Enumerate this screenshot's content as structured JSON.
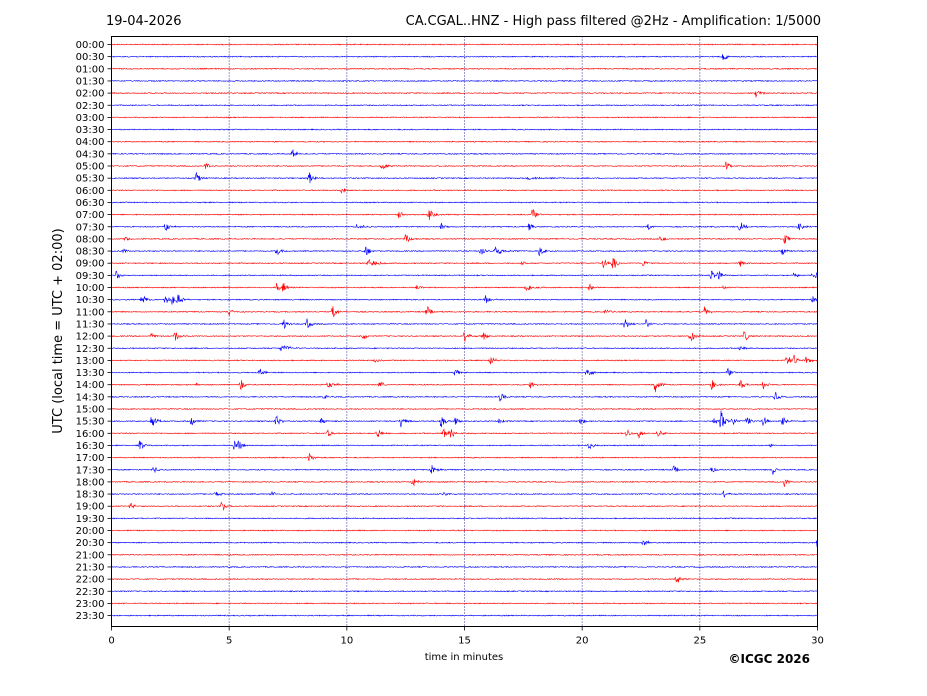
{
  "header": {
    "date": "19-04-2026",
    "title": "CA.CGAL..HNZ - High pass filtered @2Hz - Amplification: 1/5000"
  },
  "footer": {
    "copyright": "©ICGC 2026"
  },
  "colors": {
    "even_row": "#ff0000",
    "odd_row": "#0000ff",
    "grid": "#000080",
    "axis": "#000000"
  },
  "chart_data": {
    "type": "line",
    "title": "CA.CGAL..HNZ - High pass filtered @2Hz - Amplification: 1/5000",
    "xlabel": "time in minutes",
    "ylabel": "UTC (local time = UTC + 02:00)",
    "xlim": [
      0,
      30
    ],
    "xticks": [
      0,
      5,
      10,
      15,
      20,
      25,
      30
    ],
    "grid_x": [
      5,
      10,
      15,
      20,
      25
    ],
    "rows": [
      "00:00",
      "00:30",
      "01:00",
      "01:30",
      "02:00",
      "02:30",
      "03:00",
      "03:30",
      "04:00",
      "04:30",
      "05:00",
      "05:30",
      "06:00",
      "06:30",
      "07:00",
      "07:30",
      "08:00",
      "08:30",
      "09:00",
      "09:30",
      "10:00",
      "10:30",
      "11:00",
      "11:30",
      "12:00",
      "12:30",
      "13:00",
      "13:30",
      "14:00",
      "14:30",
      "15:00",
      "15:30",
      "16:00",
      "16:30",
      "17:00",
      "17:30",
      "18:00",
      "18:30",
      "19:00",
      "19:30",
      "20:00",
      "20:30",
      "21:00",
      "21:30",
      "22:00",
      "22:30",
      "23:00",
      "23:30"
    ],
    "events": [
      {
        "row": "00:30",
        "minute": 26.0,
        "amp": 0.45
      },
      {
        "row": "02:00",
        "minute": 27.4,
        "amp": 0.5
      },
      {
        "row": "04:30",
        "minute": 7.7,
        "amp": 0.55
      },
      {
        "row": "05:00",
        "minute": 4.0,
        "amp": 0.4
      },
      {
        "row": "05:00",
        "minute": 11.5,
        "amp": 0.45
      },
      {
        "row": "05:00",
        "minute": 26.1,
        "amp": 0.45
      },
      {
        "row": "05:30",
        "minute": 3.6,
        "amp": 0.6
      },
      {
        "row": "05:30",
        "minute": 8.4,
        "amp": 0.65
      },
      {
        "row": "05:30",
        "minute": 17.7,
        "amp": 0.15,
        "dur": 0.8
      },
      {
        "row": "06:00",
        "minute": 9.8,
        "amp": 0.5
      },
      {
        "row": "07:00",
        "minute": 12.2,
        "amp": 0.4
      },
      {
        "row": "07:00",
        "minute": 13.5,
        "amp": 0.6
      },
      {
        "row": "07:00",
        "minute": 17.9,
        "amp": 0.65
      },
      {
        "row": "07:30",
        "minute": 2.3,
        "amp": 0.45
      },
      {
        "row": "07:30",
        "minute": 10.4,
        "amp": 0.2,
        "dur": 0.7
      },
      {
        "row": "07:30",
        "minute": 14.0,
        "amp": 0.45
      },
      {
        "row": "07:30",
        "minute": 17.7,
        "amp": 0.45
      },
      {
        "row": "07:30",
        "minute": 22.8,
        "amp": 0.3
      },
      {
        "row": "07:30",
        "minute": 26.7,
        "amp": 0.55
      },
      {
        "row": "07:30",
        "minute": 29.2,
        "amp": 0.55
      },
      {
        "row": "08:00",
        "minute": 0.6,
        "amp": 0.3
      },
      {
        "row": "08:00",
        "minute": 12.5,
        "amp": 0.5
      },
      {
        "row": "08:00",
        "minute": 23.3,
        "amp": 0.45
      },
      {
        "row": "08:00",
        "minute": 28.6,
        "amp": 0.6
      },
      {
        "row": "08:30",
        "minute": 0.5,
        "amp": 0.3
      },
      {
        "row": "08:30",
        "minute": 7.0,
        "amp": 0.6
      },
      {
        "row": "08:30",
        "minute": 10.8,
        "amp": 0.6
      },
      {
        "row": "08:30",
        "minute": 15.7,
        "amp": 0.6
      },
      {
        "row": "08:30",
        "minute": 16.3,
        "amp": 0.45,
        "dur": 0.6
      },
      {
        "row": "08:30",
        "minute": 18.2,
        "amp": 0.55
      },
      {
        "row": "08:30",
        "minute": 28.5,
        "amp": 0.5
      },
      {
        "row": "09:00",
        "minute": 10.9,
        "amp": 0.45,
        "dur": 0.5
      },
      {
        "row": "09:00",
        "minute": 17.4,
        "amp": 0.25
      },
      {
        "row": "09:00",
        "minute": 20.9,
        "amp": 0.45
      },
      {
        "row": "09:00",
        "minute": 21.3,
        "amp": 0.7
      },
      {
        "row": "09:00",
        "minute": 22.6,
        "amp": 0.35
      },
      {
        "row": "09:00",
        "minute": 26.7,
        "amp": 0.35
      },
      {
        "row": "09:30",
        "minute": 0.2,
        "amp": 0.45
      },
      {
        "row": "09:30",
        "minute": 25.5,
        "amp": 0.5
      },
      {
        "row": "09:30",
        "minute": 25.8,
        "amp": 0.5
      },
      {
        "row": "09:30",
        "minute": 29.0,
        "amp": 0.45
      },
      {
        "row": "09:30",
        "minute": 29.8,
        "amp": 0.55
      },
      {
        "row": "10:00",
        "minute": 7.0,
        "amp": 0.5
      },
      {
        "row": "10:00",
        "minute": 7.3,
        "amp": 0.5
      },
      {
        "row": "10:00",
        "minute": 13.0,
        "amp": 0.2
      },
      {
        "row": "10:00",
        "minute": 17.6,
        "amp": 0.35,
        "dur": 0.6
      },
      {
        "row": "10:00",
        "minute": 20.3,
        "amp": 0.35
      },
      {
        "row": "10:00",
        "minute": 26.0,
        "amp": 0.2
      },
      {
        "row": "10:30",
        "minute": 1.3,
        "amp": 0.75
      },
      {
        "row": "10:30",
        "minute": 2.3,
        "amp": 0.6
      },
      {
        "row": "10:30",
        "minute": 2.6,
        "amp": 0.55
      },
      {
        "row": "10:30",
        "minute": 2.8,
        "amp": 0.8
      },
      {
        "row": "10:30",
        "minute": 15.9,
        "amp": 0.5
      },
      {
        "row": "10:30",
        "minute": 29.8,
        "amp": 0.45
      },
      {
        "row": "11:00",
        "minute": 5.0,
        "amp": 0.35
      },
      {
        "row": "11:00",
        "minute": 9.4,
        "amp": 0.65
      },
      {
        "row": "11:00",
        "minute": 13.4,
        "amp": 0.6
      },
      {
        "row": "11:00",
        "minute": 21.0,
        "amp": 0.3
      },
      {
        "row": "11:00",
        "minute": 25.2,
        "amp": 0.45
      },
      {
        "row": "11:30",
        "minute": 7.3,
        "amp": 0.55
      },
      {
        "row": "11:30",
        "minute": 8.3,
        "amp": 0.55
      },
      {
        "row": "11:30",
        "minute": 21.8,
        "amp": 0.6
      },
      {
        "row": "11:30",
        "minute": 22.7,
        "amp": 0.5
      },
      {
        "row": "12:00",
        "minute": 1.7,
        "amp": 0.25
      },
      {
        "row": "12:00",
        "minute": 2.7,
        "amp": 0.6
      },
      {
        "row": "12:00",
        "minute": 10.7,
        "amp": 0.35
      },
      {
        "row": "12:00",
        "minute": 15.0,
        "amp": 0.6
      },
      {
        "row": "12:00",
        "minute": 15.8,
        "amp": 0.4
      },
      {
        "row": "12:00",
        "minute": 24.6,
        "amp": 0.7
      },
      {
        "row": "12:00",
        "minute": 26.9,
        "amp": 0.55
      },
      {
        "row": "12:30",
        "minute": 7.2,
        "amp": 0.35,
        "dur": 0.6
      },
      {
        "row": "12:30",
        "minute": 26.7,
        "amp": 0.35
      },
      {
        "row": "13:00",
        "minute": 11.2,
        "amp": 0.2
      },
      {
        "row": "13:00",
        "minute": 16.1,
        "amp": 0.55
      },
      {
        "row": "13:00",
        "minute": 28.7,
        "amp": 0.55
      },
      {
        "row": "13:00",
        "minute": 29.0,
        "amp": 0.5
      },
      {
        "row": "13:00",
        "minute": 29.5,
        "amp": 0.45
      },
      {
        "row": "13:30",
        "minute": 6.3,
        "amp": 0.5
      },
      {
        "row": "13:30",
        "minute": 14.6,
        "amp": 0.45
      },
      {
        "row": "13:30",
        "minute": 20.2,
        "amp": 0.6
      },
      {
        "row": "13:30",
        "minute": 26.2,
        "amp": 0.5
      },
      {
        "row": "14:00",
        "minute": 3.6,
        "amp": 0.15
      },
      {
        "row": "14:00",
        "minute": 5.5,
        "amp": 0.55
      },
      {
        "row": "14:00",
        "minute": 9.2,
        "amp": 0.3,
        "dur": 0.5
      },
      {
        "row": "14:00",
        "minute": 11.4,
        "amp": 0.4
      },
      {
        "row": "14:00",
        "minute": 17.8,
        "amp": 0.35
      },
      {
        "row": "14:00",
        "minute": 23.1,
        "amp": 0.75
      },
      {
        "row": "14:00",
        "minute": 25.5,
        "amp": 0.5
      },
      {
        "row": "14:00",
        "minute": 26.7,
        "amp": 0.6
      },
      {
        "row": "14:00",
        "minute": 27.7,
        "amp": 0.45
      },
      {
        "row": "14:30",
        "minute": 9.0,
        "amp": 0.35
      },
      {
        "row": "14:30",
        "minute": 16.5,
        "amp": 0.5
      },
      {
        "row": "14:30",
        "minute": 28.2,
        "amp": 0.45
      },
      {
        "row": "15:30",
        "minute": 1.7,
        "amp": 0.75
      },
      {
        "row": "15:30",
        "minute": 3.4,
        "amp": 0.45
      },
      {
        "row": "15:30",
        "minute": 7.0,
        "amp": 0.65
      },
      {
        "row": "15:30",
        "minute": 8.9,
        "amp": 0.4
      },
      {
        "row": "15:30",
        "minute": 12.3,
        "amp": 0.6
      },
      {
        "row": "15:30",
        "minute": 14.0,
        "amp": 0.7
      },
      {
        "row": "15:30",
        "minute": 14.6,
        "amp": 0.4
      },
      {
        "row": "15:30",
        "minute": 16.5,
        "amp": 0.35
      },
      {
        "row": "15:30",
        "minute": 19.9,
        "amp": 0.45
      },
      {
        "row": "15:30",
        "minute": 25.6,
        "amp": 0.35
      },
      {
        "row": "15:30",
        "minute": 25.9,
        "amp": 1.0
      },
      {
        "row": "15:30",
        "minute": 26.4,
        "amp": 0.4
      },
      {
        "row": "15:30",
        "minute": 27.0,
        "amp": 0.5
      },
      {
        "row": "15:30",
        "minute": 27.7,
        "amp": 0.5
      },
      {
        "row": "15:30",
        "minute": 28.5,
        "amp": 0.5
      },
      {
        "row": "16:00",
        "minute": 9.2,
        "amp": 0.4
      },
      {
        "row": "16:00",
        "minute": 11.3,
        "amp": 0.5
      },
      {
        "row": "16:00",
        "minute": 14.1,
        "amp": 0.55
      },
      {
        "row": "16:00",
        "minute": 14.4,
        "amp": 0.6
      },
      {
        "row": "16:00",
        "minute": 21.9,
        "amp": 0.45
      },
      {
        "row": "16:00",
        "minute": 22.4,
        "amp": 0.5
      },
      {
        "row": "16:00",
        "minute": 23.2,
        "amp": 0.35,
        "dur": 0.4
      },
      {
        "row": "16:30",
        "minute": 1.2,
        "amp": 0.5
      },
      {
        "row": "16:30",
        "minute": 5.2,
        "amp": 0.45
      },
      {
        "row": "16:30",
        "minute": 5.4,
        "amp": 0.5
      },
      {
        "row": "16:30",
        "minute": 20.3,
        "amp": 0.45
      },
      {
        "row": "16:30",
        "minute": 28.0,
        "amp": 0.2
      },
      {
        "row": "17:00",
        "minute": 8.4,
        "amp": 0.5
      },
      {
        "row": "17:30",
        "minute": 1.8,
        "amp": 0.4
      },
      {
        "row": "17:30",
        "minute": 13.6,
        "amp": 0.5
      },
      {
        "row": "17:30",
        "minute": 23.9,
        "amp": 0.4
      },
      {
        "row": "17:30",
        "minute": 25.5,
        "amp": 0.35
      },
      {
        "row": "17:30",
        "minute": 28.1,
        "amp": 0.55
      },
      {
        "row": "18:00",
        "minute": 12.8,
        "amp": 0.5
      },
      {
        "row": "18:00",
        "minute": 28.6,
        "amp": 0.45
      },
      {
        "row": "18:30",
        "minute": 4.4,
        "amp": 0.2,
        "dur": 0.5
      },
      {
        "row": "18:30",
        "minute": 6.8,
        "amp": 0.35
      },
      {
        "row": "18:30",
        "minute": 14.1,
        "amp": 0.2
      },
      {
        "row": "18:30",
        "minute": 26.0,
        "amp": 0.4
      },
      {
        "row": "19:00",
        "minute": 0.8,
        "amp": 0.35
      },
      {
        "row": "19:00",
        "minute": 4.7,
        "amp": 0.5
      },
      {
        "row": "20:30",
        "minute": 22.6,
        "amp": 0.4
      },
      {
        "row": "20:30",
        "minute": 30.0,
        "amp": 0.6
      },
      {
        "row": "21:30",
        "minute": 9.3,
        "amp": 0.15
      },
      {
        "row": "22:00",
        "minute": 24.0,
        "amp": 0.6
      }
    ]
  }
}
